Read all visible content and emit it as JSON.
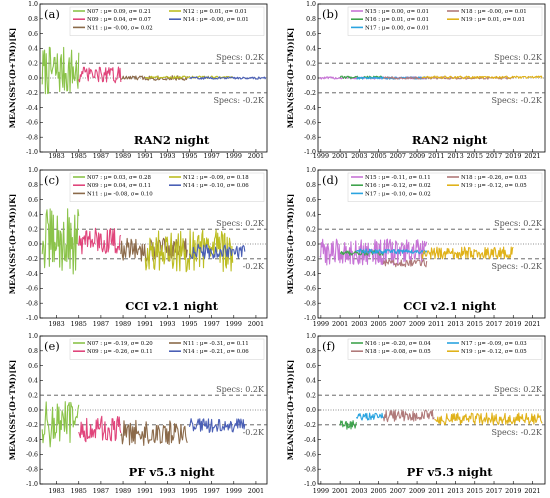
{
  "chart_data": [
    {
      "type": "line",
      "panel": "(a)",
      "caption": "RAN2 night",
      "ylabel": "MEAN(SST-(D+TM))[K]",
      "xlim": [
        1981.5,
        2002.0
      ],
      "ylim": [
        -1.0,
        1.0
      ],
      "yticks": [
        "-1.0",
        "-0.8",
        "-0.6",
        "-0.4",
        "-0.2",
        "0.0",
        "0.2",
        "0.4",
        "0.6",
        "0.8",
        "1.0"
      ],
      "xticks": [
        "1983",
        "1985",
        "1987",
        "1989",
        "1991",
        "1993",
        "1995",
        "1997",
        "1999",
        "2001"
      ],
      "specs_upper": "Specs: 0.2K",
      "specs_lower": "Specs: -0.2K",
      "legend_cols": 2,
      "legend_rows": 3,
      "series": [
        {
          "name": "N07 : μ= 0.09, σ= 0.21",
          "color": "#8bc34a",
          "x_range": [
            1981.7,
            1985.0
          ],
          "mean": 0.09,
          "amp": 0.21
        },
        {
          "name": "N09 : μ= 0.04, σ= 0.07",
          "color": "#e0457b",
          "x_range": [
            1985.0,
            1988.8
          ],
          "mean": 0.04,
          "amp": 0.07
        },
        {
          "name": "N11 : μ= -0.00, σ= 0.02",
          "color": "#8b6a4a",
          "x_range": [
            1988.8,
            1994.8
          ],
          "mean": 0.0,
          "amp": 0.02
        },
        {
          "name": "N12 : μ= 0.01, σ= 0.01",
          "color": "#bcbd22",
          "x_range": [
            1991.0,
            1998.9
          ],
          "mean": 0.01,
          "amp": 0.01
        },
        {
          "name": "N14 : μ= -0.00, σ= 0.01",
          "color": "#4a5fb5",
          "x_range": [
            1995.0,
            2001.9
          ],
          "mean": 0.0,
          "amp": 0.01
        }
      ]
    },
    {
      "type": "line",
      "panel": "(b)",
      "caption": "RAN2 night",
      "ylabel": "MEAN(SST-(D+TM))[K]",
      "xlim": [
        1998.7,
        2022.3
      ],
      "ylim": [
        -1.0,
        1.0
      ],
      "yticks": [
        "-1.0",
        "-0.8",
        "-0.6",
        "-0.4",
        "-0.2",
        "0.0",
        "0.2",
        "0.4",
        "0.6",
        "0.8",
        "1.0"
      ],
      "xticks": [
        "1999",
        "2001",
        "2003",
        "2005",
        "2007",
        "2009",
        "2011",
        "2013",
        "2015",
        "2017",
        "2019",
        "2021"
      ],
      "specs_upper": "Specs: 0.2K",
      "specs_lower": "Specs: -0.2K",
      "legend_cols": 2,
      "legend_rows": 3,
      "series": [
        {
          "name": "N15 : μ= 0.00, σ= 0.01",
          "color": "#c774d6",
          "x_range": [
            1998.9,
            2010.0
          ],
          "mean": 0.0,
          "amp": 0.01
        },
        {
          "name": "N16 : μ= 0.01, σ= 0.01",
          "color": "#3fa34d",
          "x_range": [
            2001.0,
            2005.5
          ],
          "mean": 0.01,
          "amp": 0.01
        },
        {
          "name": "N17 : μ= 0.00, σ= 0.01",
          "color": "#2aa4e0",
          "x_range": [
            2002.7,
            2010.0
          ],
          "mean": 0.0,
          "amp": 0.01
        },
        {
          "name": "N18 : μ= -0.00, σ= 0.01",
          "color": "#b07a7a",
          "x_range": [
            2005.5,
            2019.0
          ],
          "mean": 0.0,
          "amp": 0.01
        },
        {
          "name": "N19 : μ= 0.01, σ= 0.01",
          "color": "#e0b21a",
          "x_range": [
            2009.5,
            2022.0
          ],
          "mean": 0.01,
          "amp": 0.01
        }
      ]
    },
    {
      "type": "line",
      "panel": "(c)",
      "caption": "CCI v2.1 night",
      "ylabel": "MEAN(SST-(D+TM))[K]",
      "xlim": [
        1981.5,
        2002.0
      ],
      "ylim": [
        -1.0,
        1.0
      ],
      "yticks": [
        "-1.0",
        "-0.8",
        "-0.6",
        "-0.4",
        "-0.2",
        "0.0",
        "0.2",
        "0.4",
        "0.6",
        "0.8",
        "1.0"
      ],
      "xticks": [
        "1983",
        "1985",
        "1987",
        "1989",
        "1991",
        "1993",
        "1995",
        "1997",
        "1999",
        "2001"
      ],
      "specs_upper": "Specs: 0.2K",
      "specs_lower": "-0.2K",
      "legend_cols": 2,
      "legend_rows": 3,
      "series": [
        {
          "name": "N07 : μ= 0.03, σ= 0.28",
          "color": "#8bc34a",
          "x_range": [
            1981.7,
            1985.0
          ],
          "mean": 0.03,
          "amp": 0.28
        },
        {
          "name": "N09 : μ= 0.04, σ= 0.11",
          "color": "#e0457b",
          "x_range": [
            1985.0,
            1988.8
          ],
          "mean": 0.04,
          "amp": 0.11
        },
        {
          "name": "N11 : μ= -0.08, σ= 0.10",
          "color": "#8b6a4a",
          "x_range": [
            1988.8,
            1994.8
          ],
          "mean": -0.08,
          "amp": 0.1
        },
        {
          "name": "N12 : μ= -0.09, σ= 0.18",
          "color": "#bcbd22",
          "x_range": [
            1991.0,
            1998.9
          ],
          "mean": -0.09,
          "amp": 0.18
        },
        {
          "name": "N14 : μ= -0.10, σ= 0.06",
          "color": "#4a5fb5",
          "x_range": [
            1995.0,
            2000.0
          ],
          "mean": -0.1,
          "amp": 0.06
        }
      ]
    },
    {
      "type": "line",
      "panel": "(d)",
      "caption": "CCI v2.1 night",
      "ylabel": "MEAN(SST-(D+TM))[K]",
      "xlim": [
        1998.7,
        2022.3
      ],
      "ylim": [
        -1.0,
        1.0
      ],
      "yticks": [
        "-1.0",
        "-0.8",
        "-0.6",
        "-0.4",
        "-0.2",
        "0.0",
        "0.2",
        "0.4",
        "0.6",
        "0.8",
        "1.0"
      ],
      "xticks": [
        "1999",
        "2001",
        "2003",
        "2005",
        "2007",
        "2009",
        "2011",
        "2013",
        "2015",
        "2017",
        "2019",
        "2021"
      ],
      "specs_upper": "Specs: 0.2K",
      "specs_lower": "Specs: -0.2K",
      "legend_cols": 2,
      "legend_rows": 3,
      "series": [
        {
          "name": "N15 : μ= -0.11, σ= 0.11",
          "color": "#c774d6",
          "x_range": [
            1998.9,
            2010.0
          ],
          "mean": -0.11,
          "amp": 0.11
        },
        {
          "name": "N16 : μ= -0.12, σ= 0.02",
          "color": "#3fa34d",
          "x_range": [
            2001.0,
            2005.5
          ],
          "mean": -0.12,
          "amp": 0.02
        },
        {
          "name": "N17 : μ= -0.10, σ= 0.02",
          "color": "#2aa4e0",
          "x_range": [
            2002.7,
            2010.0
          ],
          "mean": -0.1,
          "amp": 0.02
        },
        {
          "name": "N18 : μ= -0.26, σ= 0.03",
          "color": "#b07a7a",
          "x_range": [
            2005.5,
            2010.0
          ],
          "mean": -0.26,
          "amp": 0.03
        },
        {
          "name": "N19 : μ= -0.12, σ= 0.05",
          "color": "#e0b21a",
          "x_range": [
            2009.5,
            2019.0
          ],
          "mean": -0.12,
          "amp": 0.05
        }
      ]
    },
    {
      "type": "line",
      "panel": "(e)",
      "caption": "PF v5.3 night",
      "ylabel": "MEAN(SST-(D+TM))[K]",
      "xlim": [
        1981.5,
        2002.0
      ],
      "ylim": [
        -1.0,
        1.0
      ],
      "yticks": [
        "-1.0",
        "-0.8",
        "-0.6",
        "-0.4",
        "-0.2",
        "0.0",
        "0.2",
        "0.4",
        "0.6",
        "0.8",
        "1.0"
      ],
      "xticks": [
        "1983",
        "1985",
        "1987",
        "1989",
        "1991",
        "1993",
        "1995",
        "1997",
        "1999",
        "2001"
      ],
      "specs_upper": "Specs: 0.2K",
      "specs_lower": "-0.2K",
      "legend_cols": 2,
      "legend_rows": 2,
      "series": [
        {
          "name": "N07 : μ= -0.19, σ= 0.20",
          "color": "#8bc34a",
          "x_range": [
            1981.7,
            1985.0
          ],
          "mean": -0.19,
          "amp": 0.2
        },
        {
          "name": "N09 : μ= -0.26, σ= 0.11",
          "color": "#e0457b",
          "x_range": [
            1985.0,
            1988.8
          ],
          "mean": -0.26,
          "amp": 0.11
        },
        {
          "name": "N11 : μ= -0.31, σ= 0.11",
          "color": "#8b6a4a",
          "x_range": [
            1988.8,
            1994.8
          ],
          "mean": -0.31,
          "amp": 0.11
        },
        {
          "name": "N14 : μ= -0.21, σ= 0.06",
          "color": "#4a5fb5",
          "x_range": [
            1995.0,
            2000.0
          ],
          "mean": -0.21,
          "amp": 0.06
        }
      ]
    },
    {
      "type": "line",
      "panel": "(f)",
      "caption": "PF v5.3 night",
      "ylabel": "MEAN(SST-(D+TM))[K]",
      "xlim": [
        1998.7,
        2022.3
      ],
      "ylim": [
        -1.0,
        1.0
      ],
      "yticks": [
        "-1.0",
        "-0.8",
        "-0.6",
        "-0.4",
        "-0.2",
        "0.0",
        "0.2",
        "0.4",
        "0.6",
        "0.8",
        "1.0"
      ],
      "xticks": [
        "1999",
        "2001",
        "2003",
        "2005",
        "2007",
        "2009",
        "2011",
        "2013",
        "2015",
        "2017",
        "2019",
        "2021"
      ],
      "specs_upper": "Specs: 0.2K",
      "specs_lower": "Specs: -0.2K",
      "legend_cols": 2,
      "legend_rows": 2,
      "series": [
        {
          "name": "N16 : μ= -0.20, σ= 0.04",
          "color": "#3fa34d",
          "x_range": [
            2001.0,
            2002.7
          ],
          "mean": -0.2,
          "amp": 0.04
        },
        {
          "name": "N18 : μ= -0.08, σ= 0.05",
          "color": "#b07a7a",
          "x_range": [
            2005.5,
            2010.8
          ],
          "mean": -0.08,
          "amp": 0.05
        },
        {
          "name": "N17 : μ= -0.09, σ= 0.03",
          "color": "#2aa4e0",
          "x_range": [
            2002.7,
            2005.5
          ],
          "mean": -0.09,
          "amp": 0.03
        },
        {
          "name": "N19 : μ= -0.12, σ= 0.05",
          "color": "#e0b21a",
          "x_range": [
            2010.8,
            2022.0
          ],
          "mean": -0.12,
          "amp": 0.05
        }
      ]
    }
  ]
}
